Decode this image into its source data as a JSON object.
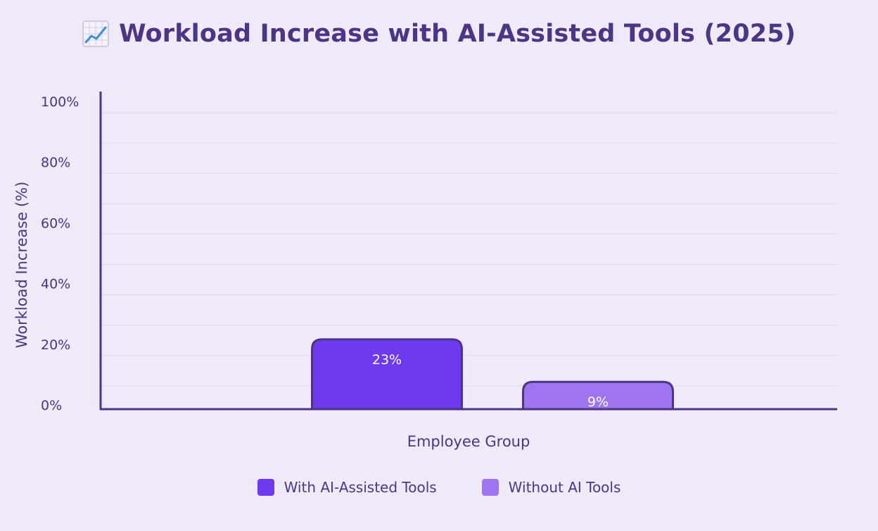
{
  "header": {
    "title": "Workload Increase with AI-Assisted Tools (2025)",
    "icon": "chart-increasing-icon"
  },
  "colors": {
    "background": "#efe9f8",
    "text": "#4c3585",
    "axis": "#4c3585",
    "grid": "#ddd6f3",
    "bar_border": "#4c3585",
    "bar_label": "#ffffff"
  },
  "chart_data": {
    "type": "bar",
    "title": "Workload Increase with AI-Assisted Tools (2025)",
    "xlabel": "Employee Group",
    "ylabel": "Workload Increase (%)",
    "ylim": [
      0,
      100
    ],
    "yticks": [
      "0%",
      "20%",
      "40%",
      "60%",
      "80%",
      "100%"
    ],
    "ytick_values": [
      0,
      20,
      40,
      60,
      80,
      100
    ],
    "grid": true,
    "legend_position": "bottom-center",
    "series": [
      {
        "name": "With AI-Assisted Tools",
        "value": 23,
        "label": "23%",
        "color": "#6d3aee"
      },
      {
        "name": "Without AI Tools",
        "value": 9,
        "label": "9%",
        "color": "#9e75ee"
      }
    ]
  },
  "legend": {
    "items": [
      {
        "label": "With AI-Assisted Tools",
        "color": "#6d3aee"
      },
      {
        "label": "Without AI Tools",
        "color": "#9e75ee"
      }
    ]
  }
}
